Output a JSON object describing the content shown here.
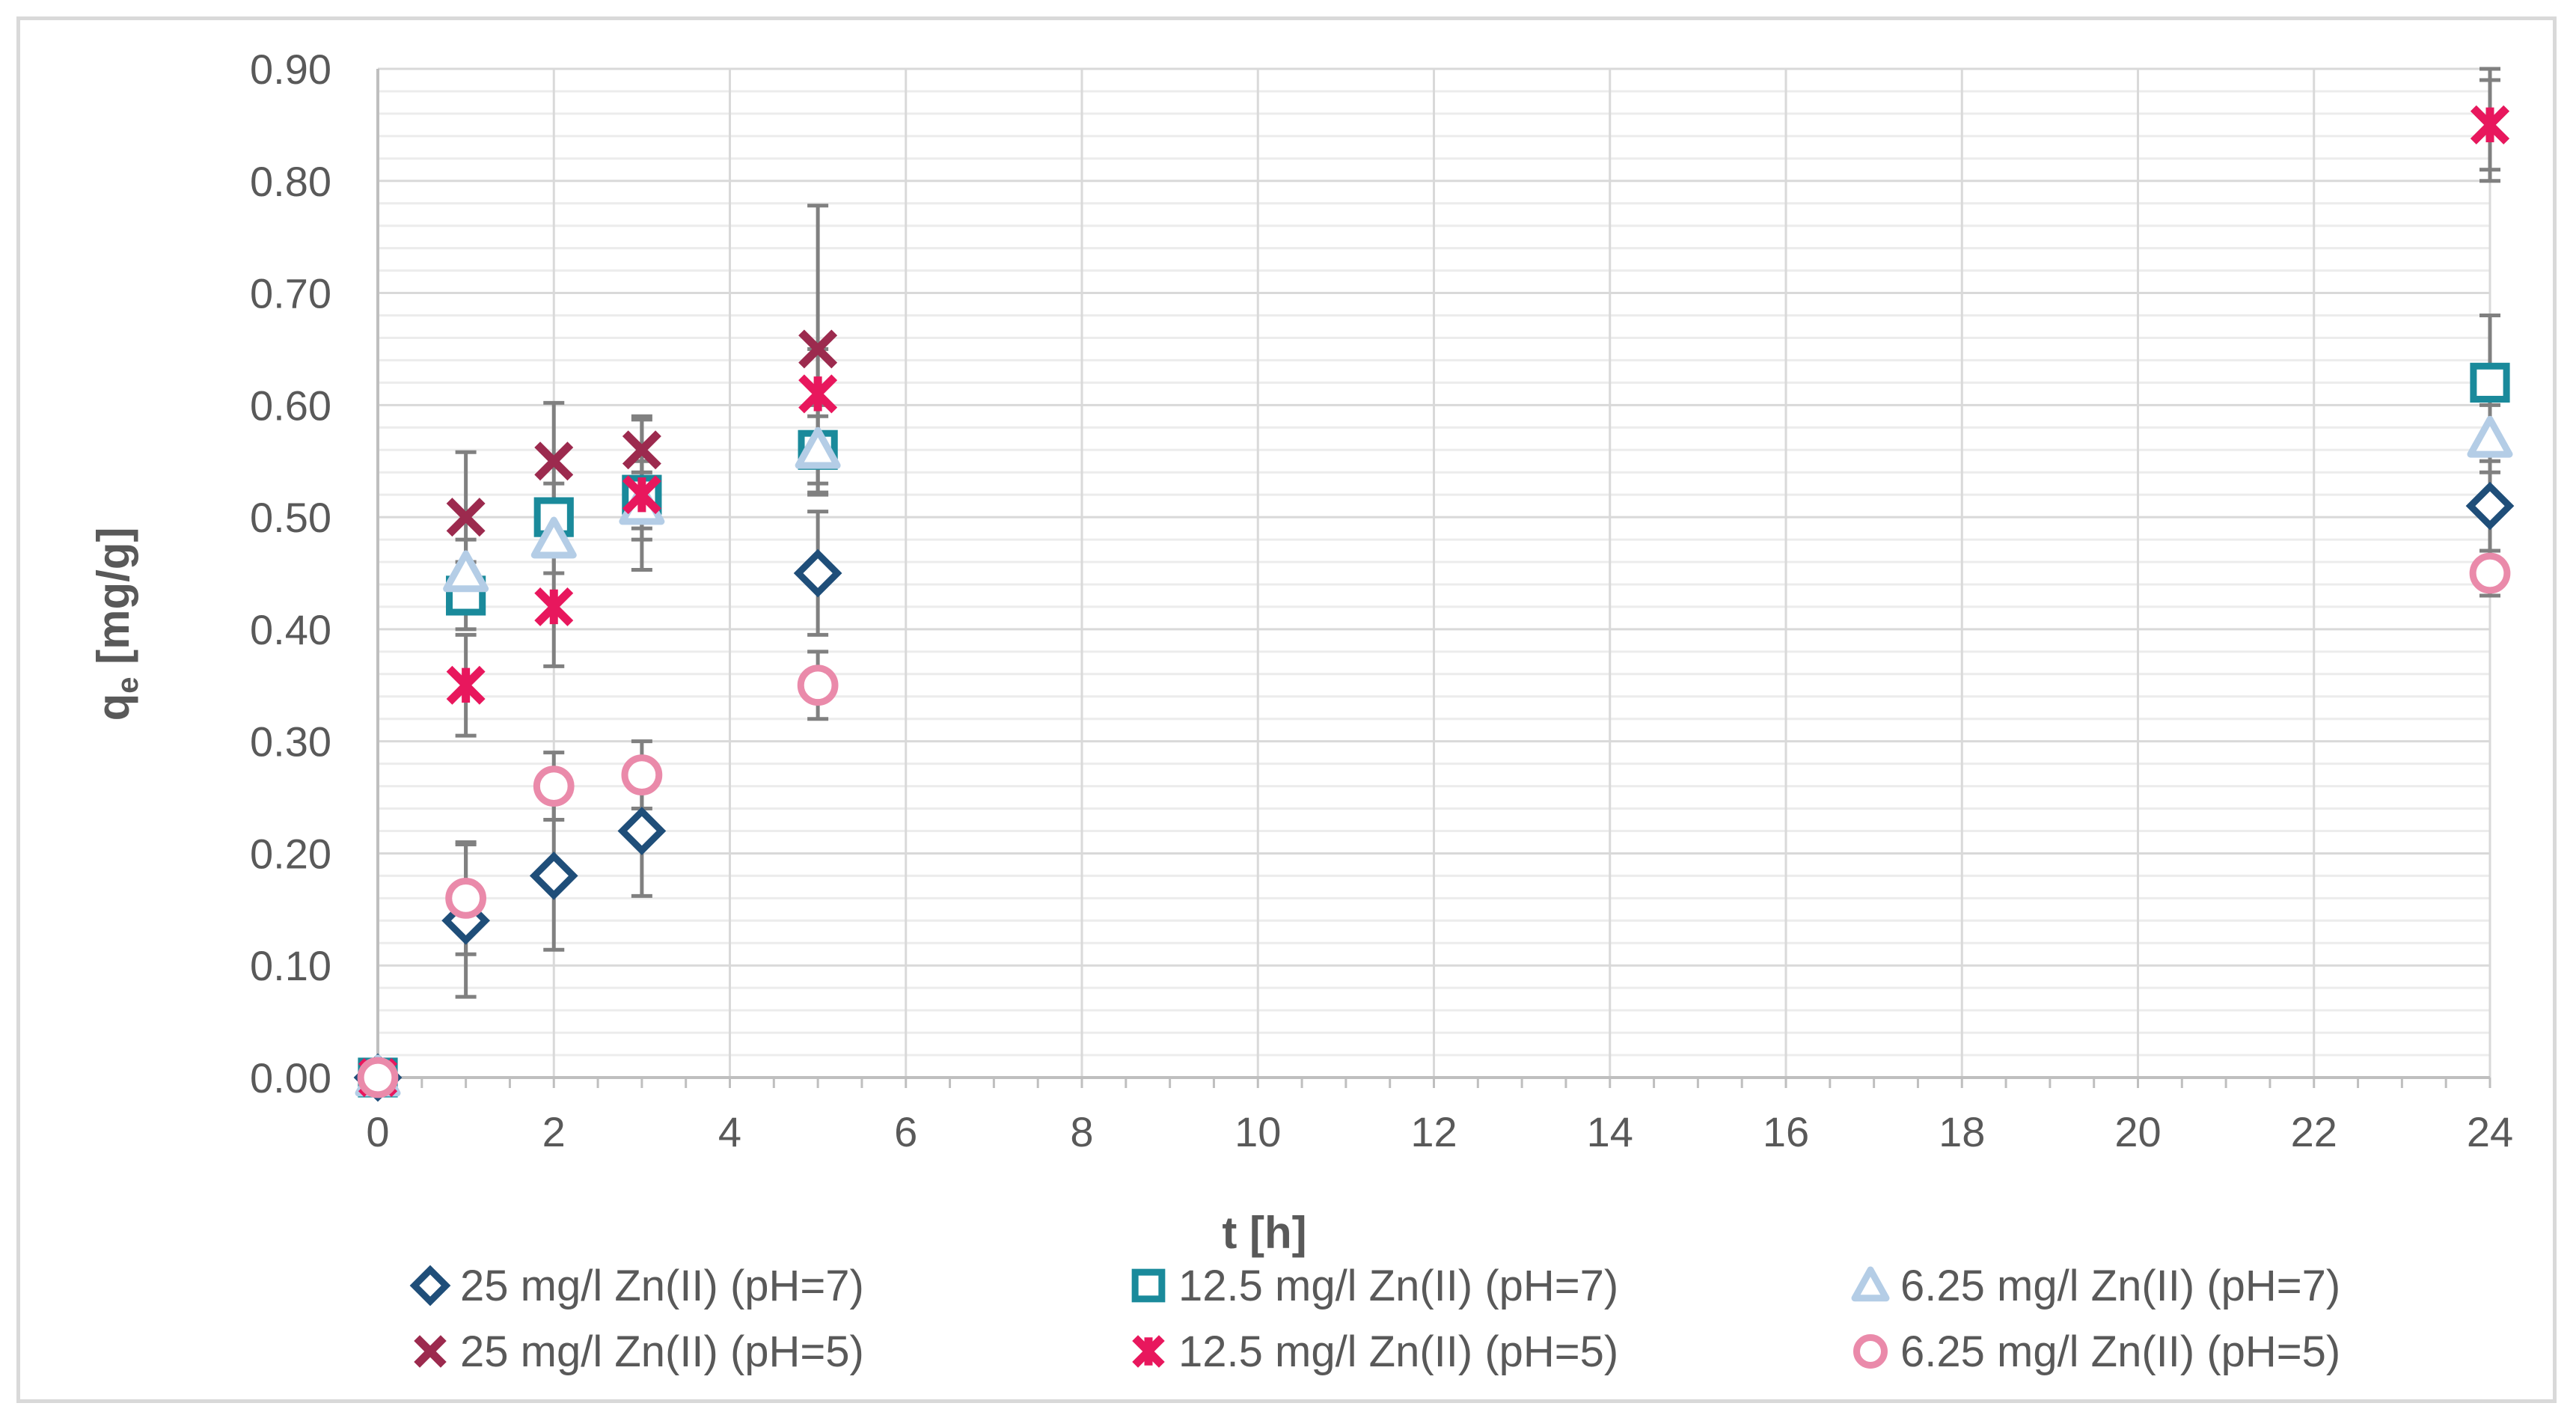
{
  "chart_data": {
    "type": "scatter",
    "title": "",
    "xlabel": "t [h]",
    "ylabel_main": "q",
    "ylabel_sub": "e",
    "ylabel_unit": " [mg/g]",
    "xlim": [
      0,
      24
    ],
    "ylim": [
      0,
      0.9
    ],
    "x_major_step": 2,
    "y_major_step": 0.1,
    "y_minor_step": 0.02,
    "x_ticks": [
      "0",
      "2",
      "4",
      "6",
      "8",
      "10",
      "12",
      "14",
      "16",
      "18",
      "20",
      "22",
      "24"
    ],
    "y_ticks": [
      "0.00",
      "0.10",
      "0.20",
      "0.30",
      "0.40",
      "0.50",
      "0.60",
      "0.70",
      "0.80",
      "0.90"
    ],
    "grid": true,
    "legend_position": "bottom",
    "series": [
      {
        "name": "25 mg/l Zn(II) (pH=7)",
        "marker": "diamond",
        "color": "#1f4e79",
        "points": [
          {
            "x": 0,
            "y": 0.0,
            "err": 0
          },
          {
            "x": 1,
            "y": 0.14,
            "err": 0.068
          },
          {
            "x": 2,
            "y": 0.18,
            "err": 0.066
          },
          {
            "x": 3,
            "y": 0.22,
            "err": 0.058
          },
          {
            "x": 5,
            "y": 0.45,
            "err": 0.055
          },
          {
            "x": 24,
            "y": 0.51,
            "err": 0.04
          }
        ]
      },
      {
        "name": "12.5 mg/l Zn(II) (pH=7)",
        "marker": "square",
        "color": "#1a8a9b",
        "points": [
          {
            "x": 0,
            "y": 0.0,
            "err": 0
          },
          {
            "x": 1,
            "y": 0.43,
            "err": 0.03
          },
          {
            "x": 2,
            "y": 0.5,
            "err": 0.03
          },
          {
            "x": 3,
            "y": 0.52,
            "err": 0.03
          },
          {
            "x": 5,
            "y": 0.56,
            "err": 0.04
          },
          {
            "x": 24,
            "y": 0.62,
            "err": 0.06
          }
        ]
      },
      {
        "name": "6.25 mg/l Zn(II) (pH=7)",
        "marker": "triangle",
        "color": "#b4cde6",
        "points": [
          {
            "x": 0,
            "y": 0.0,
            "err": 0
          },
          {
            "x": 1,
            "y": 0.45,
            "err": 0.03
          },
          {
            "x": 2,
            "y": 0.48,
            "err": 0.03
          },
          {
            "x": 3,
            "y": 0.51,
            "err": 0.03
          },
          {
            "x": 5,
            "y": 0.56,
            "err": 0.03
          },
          {
            "x": 24,
            "y": 0.57,
            "err": 0.03
          }
        ]
      },
      {
        "name": "25 mg/l Zn(II) (pH=5)",
        "marker": "x",
        "color": "#9c2a4e",
        "points": [
          {
            "x": 0,
            "y": 0.0,
            "err": 0
          },
          {
            "x": 1,
            "y": 0.5,
            "err": 0.058
          },
          {
            "x": 2,
            "y": 0.55,
            "err": 0.052
          },
          {
            "x": 3,
            "y": 0.56,
            "err": 0.03
          },
          {
            "x": 5,
            "y": 0.65,
            "err": 0.128
          },
          {
            "x": 24,
            "y": 0.85,
            "err": 0.04
          }
        ]
      },
      {
        "name": "12.5 mg/l Zn(II) (pH=5)",
        "marker": "star",
        "color": "#e8175d",
        "points": [
          {
            "x": 0,
            "y": 0.0,
            "err": 0
          },
          {
            "x": 1,
            "y": 0.35,
            "err": 0.045
          },
          {
            "x": 2,
            "y": 0.42,
            "err": 0.053
          },
          {
            "x": 3,
            "y": 0.52,
            "err": 0.067
          },
          {
            "x": 5,
            "y": 0.61,
            "err": 0.04
          },
          {
            "x": 24,
            "y": 0.85,
            "err": 0.05
          }
        ]
      },
      {
        "name": "6.25 mg/l Zn(II) (pH=5)",
        "marker": "circle",
        "color": "#ea8aaa",
        "points": [
          {
            "x": 0,
            "y": 0.0,
            "err": 0
          },
          {
            "x": 1,
            "y": 0.16,
            "err": 0.05
          },
          {
            "x": 2,
            "y": 0.26,
            "err": 0.03
          },
          {
            "x": 3,
            "y": 0.27,
            "err": 0.03
          },
          {
            "x": 5,
            "y": 0.35,
            "err": 0.03
          },
          {
            "x": 24,
            "y": 0.45,
            "err": 0.02
          }
        ]
      }
    ]
  }
}
